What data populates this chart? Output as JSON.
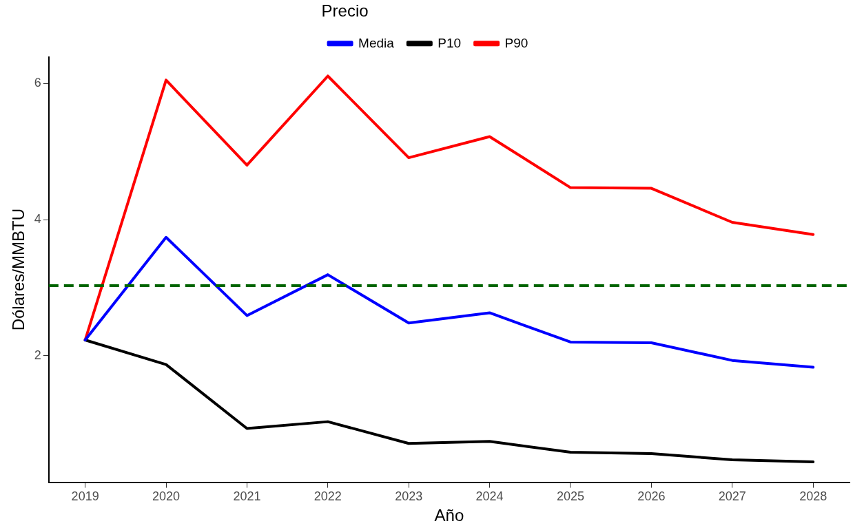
{
  "chart_data": {
    "type": "line",
    "xlabel": "Año",
    "ylabel": "Dólares/MMBTU",
    "legend_title": "Precio",
    "legend": "top",
    "grid": false,
    "marker": "none",
    "x": [
      2019,
      2020,
      2021,
      2022,
      2023,
      2024,
      2025,
      2026,
      2027,
      2028
    ],
    "xlim": [
      2018.55,
      2028.45
    ],
    "xticks": [
      2019,
      2020,
      2021,
      2022,
      2023,
      2024,
      2025,
      2026,
      2027,
      2028
    ],
    "ylim": [
      0.14,
      6.39
    ],
    "yticks": [
      2,
      4,
      6
    ],
    "series": [
      {
        "name": "Media",
        "color": "#0000ff",
        "values": [
          2.23,
          3.74,
          2.59,
          3.19,
          2.48,
          2.63,
          2.2,
          2.19,
          1.93,
          1.83
        ]
      },
      {
        "name": "P10",
        "color": "#000000",
        "values": [
          2.23,
          1.87,
          0.93,
          1.03,
          0.71,
          0.74,
          0.58,
          0.56,
          0.47,
          0.44
        ]
      },
      {
        "name": "P90",
        "color": "#ff0000",
        "values": [
          2.23,
          6.05,
          4.8,
          6.11,
          4.91,
          5.22,
          4.47,
          4.46,
          3.96,
          3.78
        ]
      }
    ],
    "ref_lines": [
      {
        "axis": "y",
        "value": 3.03,
        "color": "#006400",
        "line_style": "dashed"
      }
    ]
  }
}
